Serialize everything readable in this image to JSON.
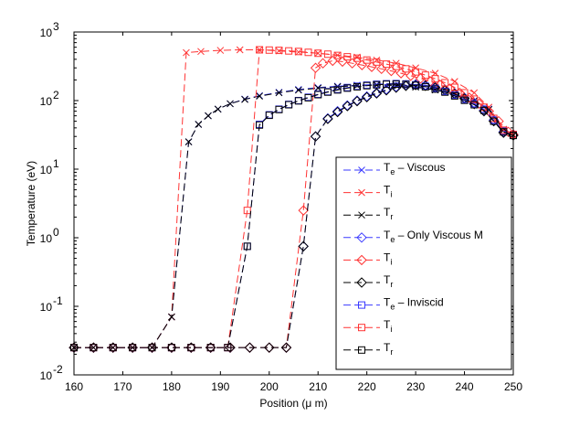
{
  "chart_data": {
    "type": "line",
    "title": "",
    "xlabel": "Position (μ m)",
    "ylabel": "Temperature (eV)",
    "xlim": [
      160,
      250
    ],
    "ylim": [
      0.01,
      1000
    ],
    "yscale": "log",
    "grid": false,
    "legend_position": "bottom-right",
    "x_ticks": [
      "160",
      "170",
      "180",
      "190",
      "200",
      "210",
      "220",
      "230",
      "240",
      "250"
    ],
    "y_ticks": [
      {
        "base": "10",
        "exp": "-2"
      },
      {
        "base": "10",
        "exp": "-1"
      },
      {
        "base": "10",
        "exp": "0"
      },
      {
        "base": "10",
        "exp": "1"
      },
      {
        "base": "10",
        "exp": "2"
      },
      {
        "base": "10",
        "exp": "3"
      }
    ],
    "series": [
      {
        "name": "Viscous Te",
        "legend_main": "T",
        "legend_sub": "e",
        "legend_suffix": " – Viscous",
        "color": "#3a3aff",
        "marker": "x",
        "x": [
          160,
          164,
          168,
          172,
          176,
          180,
          183.5,
          185.5,
          187.5,
          189.5,
          192,
          195,
          198,
          202,
          206,
          210,
          214,
          218,
          222,
          226,
          230,
          234,
          238,
          242,
          245,
          248,
          250
        ],
        "y": [
          0.025,
          0.025,
          0.025,
          0.025,
          0.025,
          0.07,
          25,
          45,
          60,
          75,
          90,
          105,
          118,
          132,
          145,
          155,
          162,
          168,
          172,
          170,
          160,
          145,
          125,
          100,
          75,
          38,
          32
        ]
      },
      {
        "name": "Viscous Ti",
        "legend_main": "T",
        "legend_sub": "i",
        "legend_suffix": "",
        "color": "#ff3333",
        "marker": "x",
        "x": [
          160,
          164,
          168,
          172,
          176,
          180,
          183,
          186,
          190,
          194,
          198,
          202,
          206,
          210,
          214,
          218,
          222,
          226,
          230,
          234,
          238,
          242,
          245,
          248,
          250
        ],
        "y": [
          0.025,
          0.025,
          0.025,
          0.025,
          0.025,
          0.07,
          500,
          520,
          540,
          550,
          550,
          530,
          510,
          490,
          460,
          430,
          390,
          350,
          300,
          250,
          190,
          130,
          80,
          38,
          32
        ]
      },
      {
        "name": "Viscous Tr",
        "legend_main": "T",
        "legend_sub": "r",
        "legend_suffix": "",
        "color": "#000000",
        "marker": "x",
        "x": [
          160,
          164,
          168,
          172,
          176,
          180,
          183.5,
          185.5,
          187.5,
          189.5,
          192,
          195,
          198,
          202,
          206,
          210,
          214,
          218,
          222,
          226,
          230,
          234,
          238,
          242,
          245,
          248,
          250
        ],
        "y": [
          0.025,
          0.025,
          0.025,
          0.025,
          0.025,
          0.07,
          25,
          45,
          60,
          75,
          90,
          104,
          116,
          130,
          142,
          152,
          159,
          165,
          168,
          166,
          157,
          143,
          123,
          99,
          74,
          37,
          31
        ]
      },
      {
        "name": "Only Viscous M Te",
        "legend_main": "T",
        "legend_sub": "e",
        "legend_suffix": " – Only Viscous M",
        "color": "#3a3aff",
        "marker": "diamond",
        "x": [
          160,
          164,
          168,
          172,
          176,
          180,
          184,
          188,
          192,
          196,
          200,
          203.5,
          207,
          209.5,
          212,
          214,
          216,
          218,
          220,
          222,
          224,
          226,
          228,
          230,
          232,
          234,
          236,
          238,
          240,
          242,
          244,
          246,
          248,
          250
        ],
        "y": [
          0.025,
          0.025,
          0.025,
          0.025,
          0.025,
          0.025,
          0.025,
          0.025,
          0.025,
          0.025,
          0.025,
          0.025,
          0.75,
          30,
          55,
          70,
          85,
          100,
          115,
          130,
          145,
          158,
          168,
          172,
          168,
          158,
          145,
          128,
          110,
          92,
          72,
          52,
          35,
          32
        ]
      },
      {
        "name": "Only Viscous M Ti",
        "legend_main": "T",
        "legend_sub": "i",
        "legend_suffix": "",
        "color": "#ff3333",
        "marker": "diamond",
        "x": [
          160,
          164,
          168,
          172,
          176,
          180,
          184,
          188,
          192,
          196,
          200,
          203.5,
          207,
          209.5,
          211,
          213,
          215,
          217,
          219,
          221,
          223,
          225,
          227,
          229,
          231,
          233,
          235,
          237,
          239,
          241,
          243,
          245,
          247,
          249,
          250
        ],
        "y": [
          0.025,
          0.025,
          0.025,
          0.025,
          0.025,
          0.025,
          0.025,
          0.025,
          0.025,
          0.025,
          0.025,
          0.025,
          2.5,
          300,
          350,
          380,
          370,
          350,
          330,
          310,
          290,
          270,
          250,
          230,
          210,
          190,
          170,
          150,
          130,
          110,
          90,
          70,
          50,
          35,
          32
        ]
      },
      {
        "name": "Only Viscous M Tr",
        "legend_main": "T",
        "legend_sub": "r",
        "legend_suffix": "",
        "color": "#000000",
        "marker": "diamond",
        "x": [
          160,
          164,
          168,
          172,
          176,
          180,
          184,
          188,
          192,
          196,
          200,
          203.5,
          207,
          209.5,
          212,
          214,
          216,
          218,
          220,
          222,
          224,
          226,
          228,
          230,
          232,
          234,
          236,
          238,
          240,
          242,
          244,
          246,
          248,
          250
        ],
        "y": [
          0.025,
          0.025,
          0.025,
          0.025,
          0.025,
          0.025,
          0.025,
          0.025,
          0.025,
          0.025,
          0.025,
          0.025,
          0.75,
          30,
          54,
          68,
          83,
          98,
          112,
          127,
          141,
          154,
          164,
          168,
          164,
          154,
          141,
          125,
          107,
          89,
          70,
          50,
          34,
          31
        ]
      },
      {
        "name": "Inviscid Te",
        "legend_main": "T",
        "legend_sub": "e",
        "legend_suffix": " – Inviscid",
        "color": "#3a3aff",
        "marker": "square",
        "x": [
          160,
          164,
          168,
          172,
          176,
          180,
          184,
          188,
          191.5,
          195.5,
          198,
          200,
          202,
          204,
          206,
          208,
          210,
          212,
          214,
          216,
          218,
          220,
          222,
          224,
          226,
          228,
          230,
          232,
          234,
          236,
          238,
          240,
          242,
          244,
          246,
          248,
          250
        ],
        "y": [
          0.025,
          0.025,
          0.025,
          0.025,
          0.025,
          0.025,
          0.025,
          0.025,
          0.025,
          0.75,
          45,
          62,
          75,
          88,
          100,
          112,
          124,
          135,
          146,
          155,
          162,
          168,
          173,
          176,
          177,
          175,
          170,
          162,
          150,
          136,
          120,
          104,
          90,
          75,
          52,
          36,
          32
        ]
      },
      {
        "name": "Inviscid Ti",
        "legend_main": "T",
        "legend_sub": "i",
        "legend_suffix": "",
        "color": "#ff3333",
        "marker": "square",
        "x": [
          160,
          164,
          168,
          172,
          176,
          180,
          184,
          188,
          191.5,
          195.5,
          198,
          200,
          202,
          204,
          206,
          208,
          210,
          212,
          214,
          216,
          218,
          220,
          222,
          224,
          226,
          228,
          230,
          232,
          234,
          236,
          238,
          240,
          242,
          244,
          246,
          248,
          250
        ],
        "y": [
          0.025,
          0.025,
          0.025,
          0.025,
          0.025,
          0.025,
          0.025,
          0.025,
          0.025,
          2.5,
          550,
          545,
          540,
          530,
          520,
          505,
          490,
          475,
          455,
          435,
          415,
          390,
          365,
          340,
          315,
          290,
          262,
          235,
          208,
          182,
          156,
          130,
          105,
          80,
          55,
          37,
          32
        ]
      },
      {
        "name": "Inviscid Tr",
        "legend_main": "T",
        "legend_sub": "r",
        "legend_suffix": "",
        "color": "#000000",
        "marker": "square",
        "x": [
          160,
          164,
          168,
          172,
          176,
          180,
          184,
          188,
          191.5,
          195.5,
          198,
          200,
          202,
          204,
          206,
          208,
          210,
          212,
          214,
          216,
          218,
          220,
          222,
          224,
          226,
          228,
          230,
          232,
          234,
          236,
          238,
          240,
          242,
          244,
          246,
          248,
          250
        ],
        "y": [
          0.025,
          0.025,
          0.025,
          0.025,
          0.025,
          0.025,
          0.025,
          0.025,
          0.025,
          0.75,
          44,
          61,
          74,
          87,
          99,
          110,
          122,
          133,
          143,
          152,
          159,
          165,
          170,
          173,
          174,
          172,
          167,
          159,
          147,
          133,
          117,
          101,
          87,
          72,
          50,
          35,
          31
        ]
      }
    ]
  }
}
